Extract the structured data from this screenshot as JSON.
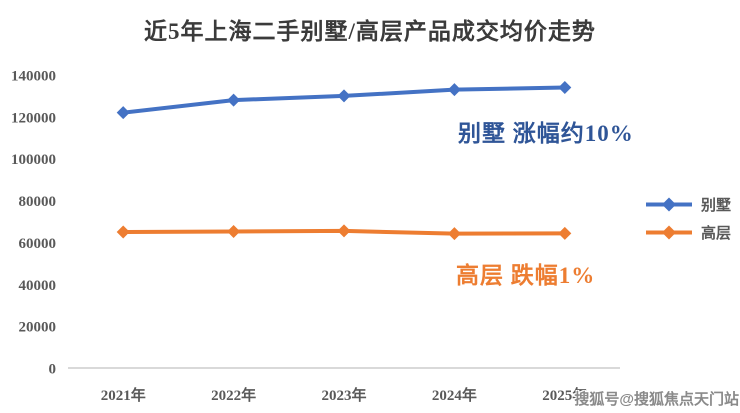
{
  "title": "近5年上海二手别墅/高层产品成交均价走势",
  "watermark": "搜狐号@搜狐焦点天门站",
  "colors": {
    "villa_line": "#4472C4",
    "highrise_line": "#ED7D31",
    "annotation_blue": "#2F5597",
    "annotation_orange": "#ED7D31",
    "axis_text": "#595959",
    "axis_line": "#D9D9D9",
    "title_text": "#3B3B3B",
    "watermark_text": "#8A8A8A"
  },
  "annotations": {
    "villa": "别墅 涨幅约10%",
    "highrise": "高层 跌幅1%"
  },
  "chart_data": {
    "type": "line",
    "title": "近5年上海二手别墅/高层产品成交均价走势",
    "categories": [
      "2021年",
      "2022年",
      "2023年",
      "2024年",
      "2025年"
    ],
    "series": [
      {
        "name": "别墅",
        "color": "#4472C4",
        "values": [
          122000,
          128000,
          130000,
          133000,
          134000
        ]
      },
      {
        "name": "高层",
        "color": "#ED7D31",
        "values": [
          65000,
          65200,
          65500,
          64200,
          64300
        ]
      }
    ],
    "xlabel": "",
    "ylabel": "",
    "ylim": [
      0,
      140000
    ],
    "yticks": [
      0,
      20000,
      40000,
      60000,
      80000,
      100000,
      120000,
      140000
    ],
    "grid": false,
    "marker": "diamond",
    "legend_position": "right"
  }
}
